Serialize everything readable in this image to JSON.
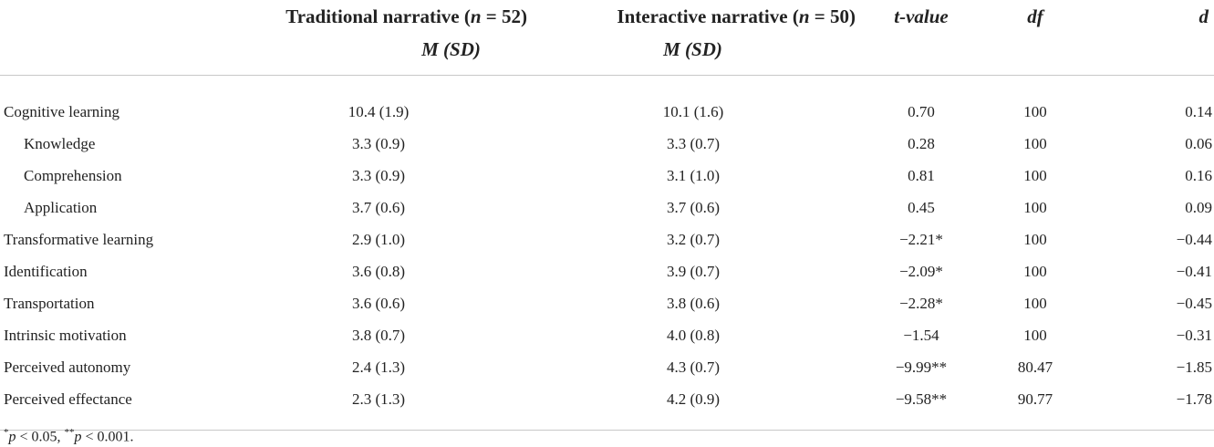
{
  "header": {
    "col1": "",
    "traditional": {
      "label": "Traditional narrative",
      "n_label": "n",
      "n_value": "= 52)",
      "stat": "M (SD)"
    },
    "interactive": {
      "label": "Interactive narrative",
      "n_label": "n",
      "n_value": "= 50)",
      "stat": "M (SD)"
    },
    "t_value": "t-value",
    "df": "df",
    "d": "d"
  },
  "rows": [
    {
      "label": "Cognitive learning",
      "sub": false,
      "trad": "10.4 (1.9)",
      "inter": "10.1 (1.6)",
      "t": "0.70",
      "df": "100",
      "d": "0.14"
    },
    {
      "label": "Knowledge",
      "sub": true,
      "trad": "3.3 (0.9)",
      "inter": "3.3 (0.7)",
      "t": "0.28",
      "df": "100",
      "d": "0.06"
    },
    {
      "label": "Comprehension",
      "sub": true,
      "trad": "3.3 (0.9)",
      "inter": "3.1 (1.0)",
      "t": "0.81",
      "df": "100",
      "d": "0.16"
    },
    {
      "label": "Application",
      "sub": true,
      "trad": "3.7 (0.6)",
      "inter": "3.7 (0.6)",
      "t": "0.45",
      "df": "100",
      "d": "0.09"
    },
    {
      "label": "Transformative learning",
      "sub": false,
      "trad": "2.9 (1.0)",
      "inter": "3.2 (0.7)",
      "t": "−2.21*",
      "df": "100",
      "d": "−0.44"
    },
    {
      "label": "Identification",
      "sub": false,
      "trad": "3.6 (0.8)",
      "inter": "3.9 (0.7)",
      "t": "−2.09*",
      "df": "100",
      "d": "−0.41"
    },
    {
      "label": "Transportation",
      "sub": false,
      "trad": "3.6 (0.6)",
      "inter": "3.8 (0.6)",
      "t": "−2.28*",
      "df": "100",
      "d": "−0.45"
    },
    {
      "label": "Intrinsic motivation",
      "sub": false,
      "trad": "3.8 (0.7)",
      "inter": "4.0 (0.8)",
      "t": "−1.54",
      "df": "100",
      "d": "−0.31"
    },
    {
      "label": "Perceived autonomy",
      "sub": false,
      "trad": "2.4 (1.3)",
      "inter": "4.3 (0.7)",
      "t": "−9.99**",
      "df": "80.47",
      "d": "−1.85"
    },
    {
      "label": "Perceived effectance",
      "sub": false,
      "trad": "2.3 (1.3)",
      "inter": "4.2 (0.9)",
      "t": "−9.58**",
      "df": "90.77",
      "d": "−1.78"
    }
  ],
  "footnote": {
    "sym1": "*",
    "p1": "p",
    "rest1": " < 0.05, ",
    "sym2": "**",
    "p2": "p",
    "rest2": " < 0.001."
  }
}
